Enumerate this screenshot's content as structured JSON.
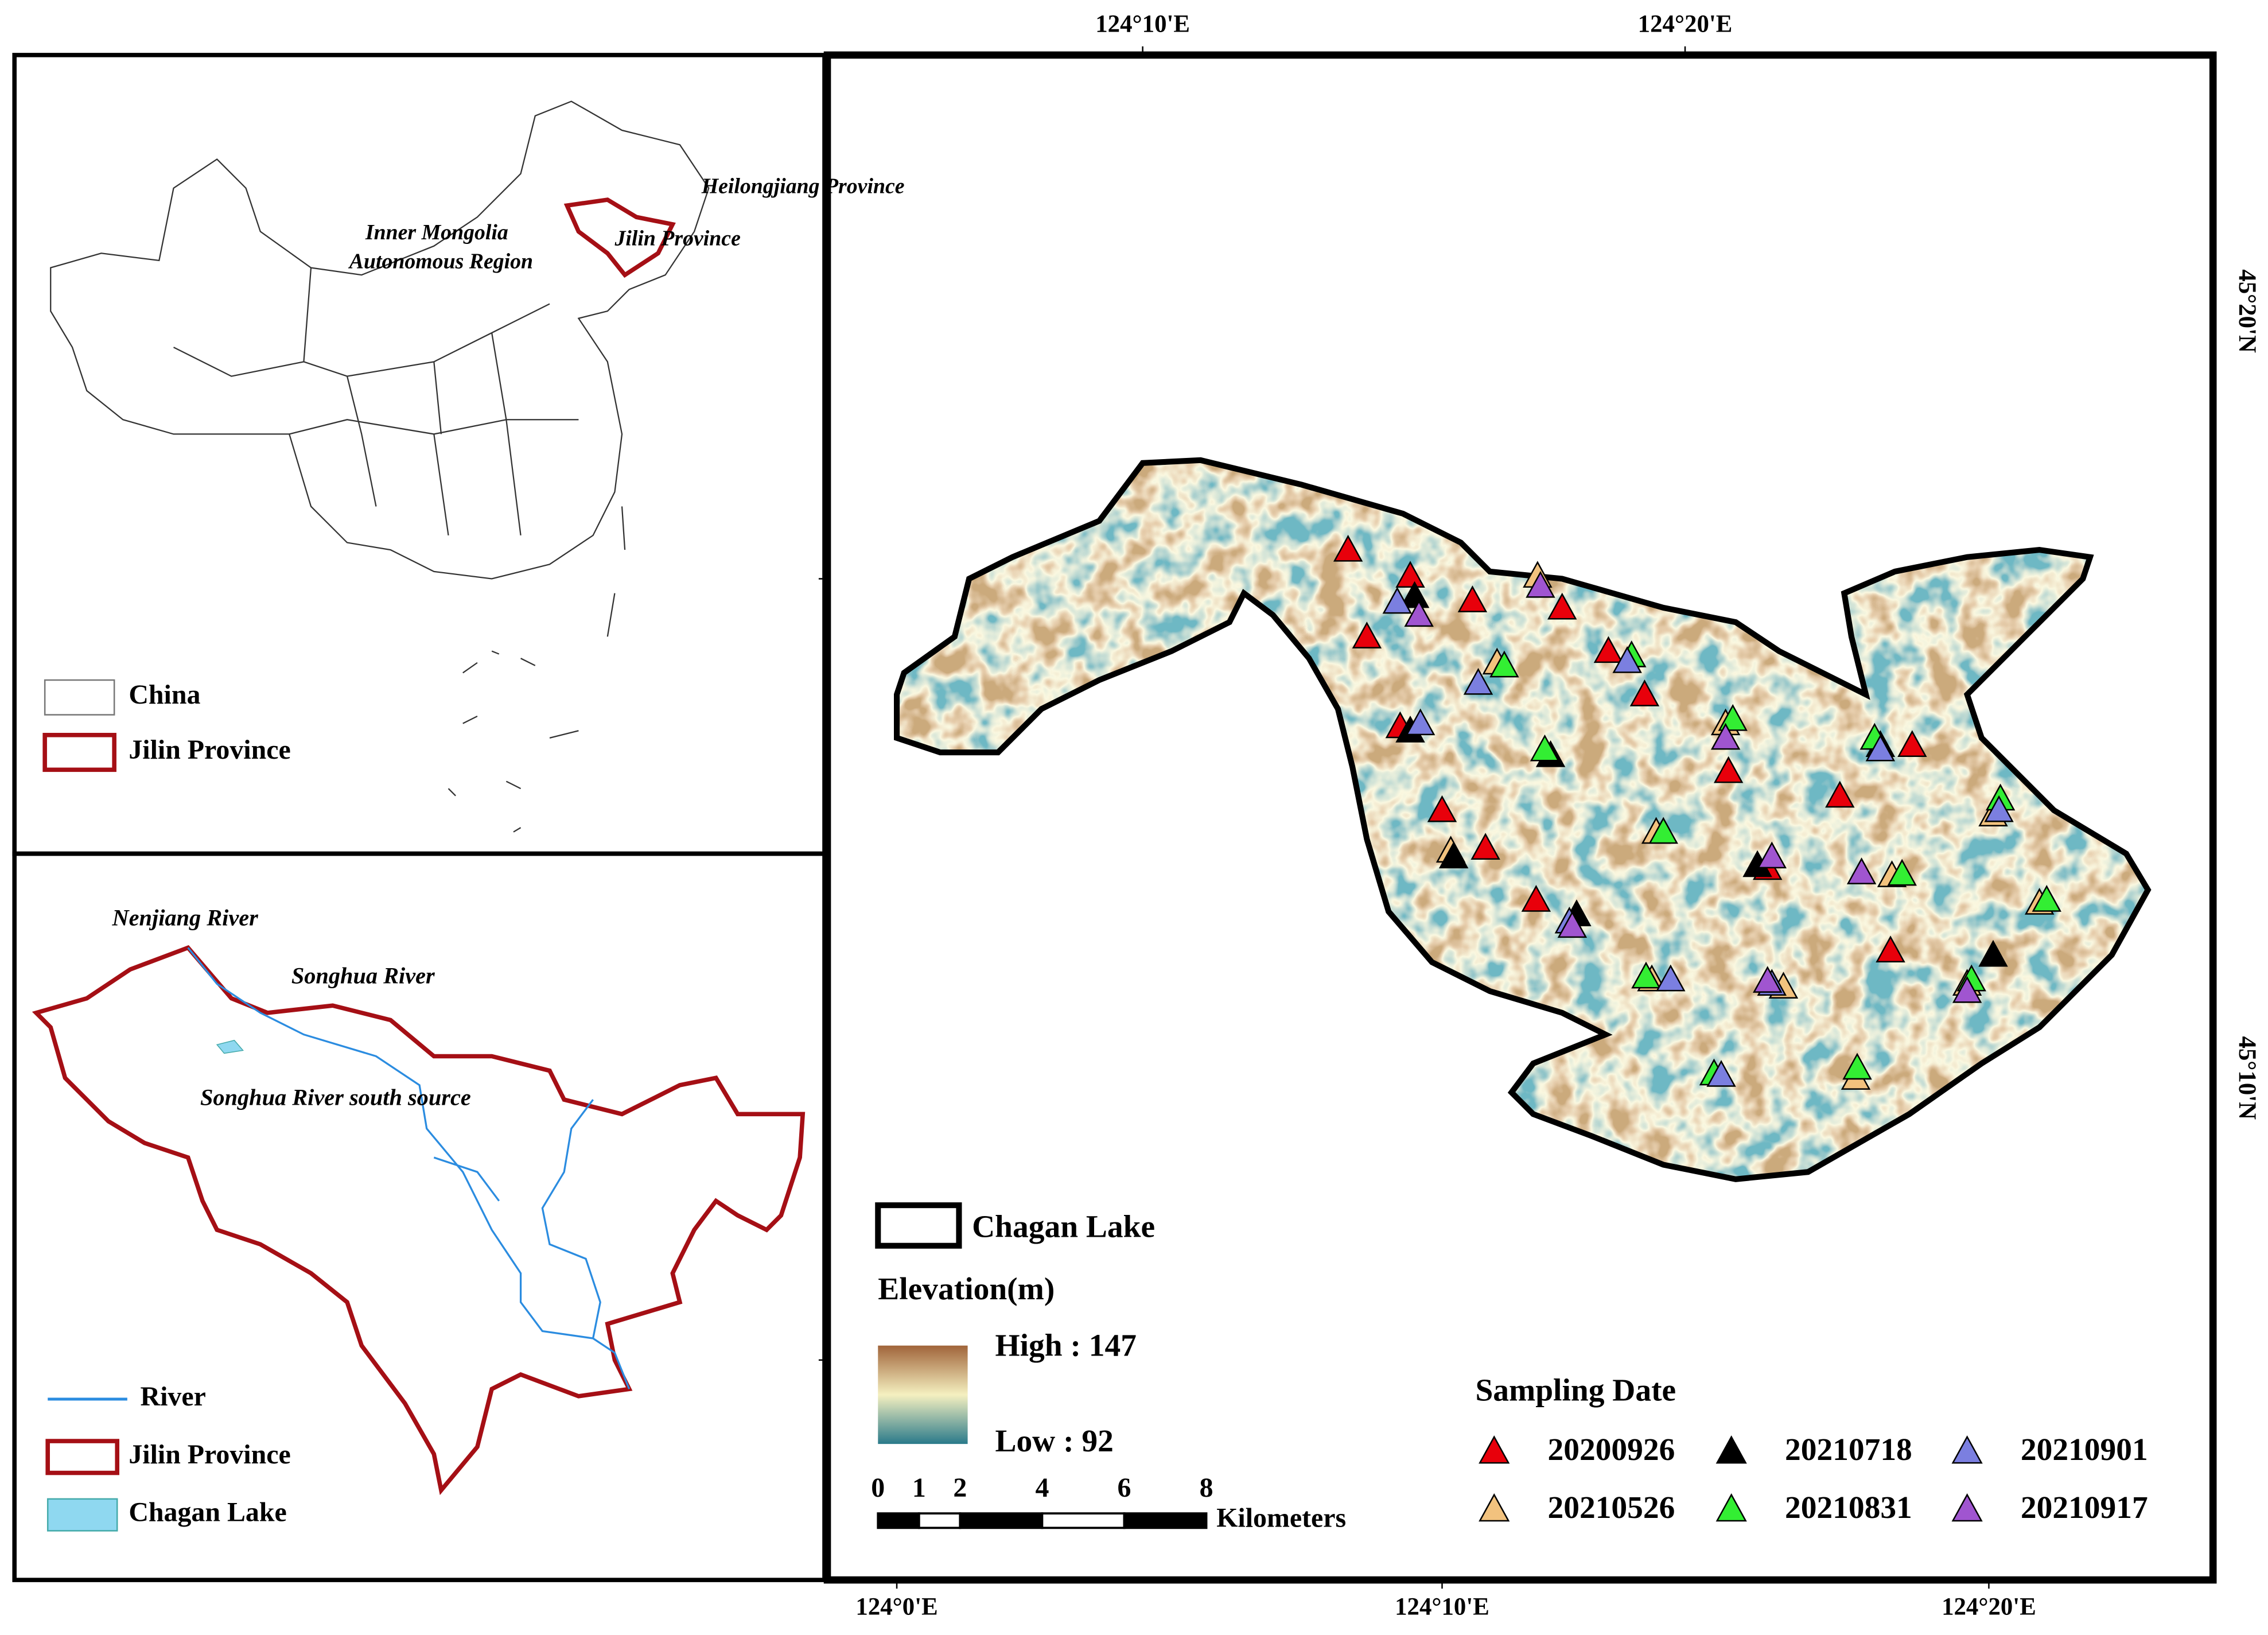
{
  "main_map": {
    "top_labels": [
      "124°10'E",
      "124°20'E"
    ],
    "bottom_labels": [
      "124°0'E",
      "124°10'E",
      "124°20'E"
    ],
    "right_labels": [
      "45°20'N",
      "45°10'N"
    ],
    "legend": {
      "lake": "Chagan Lake",
      "elevation_title": "Elevation(m)",
      "high": "High : 147",
      "low": "Low : 92"
    },
    "scale_bar": {
      "ticks": [
        0,
        1,
        2,
        4,
        6,
        8
      ],
      "unit": "Kilometers"
    },
    "sampling": {
      "title": "Sampling Date",
      "items": [
        {
          "label": "20200926",
          "color": "#e8000b"
        },
        {
          "label": "20210718",
          "color": "#000000"
        },
        {
          "label": "20210901",
          "color": "#7b7fe0"
        },
        {
          "label": "20210526",
          "color": "#f2c27e"
        },
        {
          "label": "20210831",
          "color": "#33ee33"
        },
        {
          "label": "20210917",
          "color": "#a055d0"
        }
      ]
    }
  },
  "china_inset": {
    "labels": [
      "Heilongjiang Province",
      "Jilin Province",
      "Inner Mongolia",
      "Autonomous Region"
    ],
    "legend": [
      "China",
      "Jilin Province"
    ]
  },
  "jilin_inset": {
    "labels": [
      "Nenjiang River",
      "Songhua River",
      "Songhua River south source"
    ],
    "legend": [
      "River",
      "Jilin Province",
      "Chagan Lake"
    ]
  }
}
